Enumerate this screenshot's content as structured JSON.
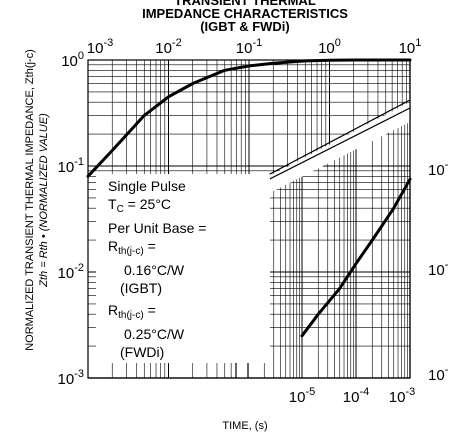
{
  "chart_data": {
    "type": "line",
    "title": [
      "TRANSIENT THERMAL",
      "IMPEDANCE CHARACTERISTICS",
      "(IGBT & FWDi)"
    ],
    "xlabel": "TIME, (s)",
    "ylabel": "NORMALIZED TRANSIENT THERMAL IMPEDANCE, Zth(j-c)",
    "ylabel2": "Zth = Rth • (NORMALIZED VALUE)",
    "left_panel": {
      "x_scale": "log",
      "y_scale": "log",
      "xlim": [
        0.001,
        10
      ],
      "ylim": [
        0.001,
        1
      ],
      "x_ticks": [
        "10-3",
        "10-2",
        "10-1",
        "100",
        "101"
      ],
      "y_ticks": [
        "100",
        "10-1",
        "10-2",
        "10-3"
      ],
      "x": [
        0.001,
        0.002,
        0.005,
        0.01,
        0.02,
        0.05,
        0.1,
        0.2,
        0.5,
        1,
        2,
        5,
        10
      ],
      "y": [
        0.08,
        0.14,
        0.3,
        0.45,
        0.6,
        0.8,
        0.88,
        0.93,
        0.98,
        0.995,
        1,
        1,
        1
      ]
    },
    "right_panel": {
      "x_scale": "log",
      "y_scale": "log",
      "xlim": [
        1e-06,
        0.001
      ],
      "ylim": [
        0.001,
        1
      ],
      "x_ticks": [
        "10-5",
        "10-4",
        "10-3"
      ],
      "y_ticks": [
        "10-",
        "10-",
        "10-"
      ],
      "x": [
        1e-05,
        2e-05,
        5e-05,
        0.0001,
        0.0002,
        0.0005,
        0.001
      ],
      "y": [
        0.0025,
        0.004,
        0.007,
        0.012,
        0.02,
        0.04,
        0.075
      ]
    },
    "grid": true
  },
  "annotation": {
    "line1": "Single Pulse",
    "tc_label": "T",
    "tc_sub": "C",
    "tc_value": " = 25°C",
    "line3": "Per Unit Base =",
    "rth_label": "R",
    "rth_sub": "th(j-c)",
    "rth_eq": " =",
    "igbt_value": "0.16°C/W",
    "igbt_label": "(IGBT)",
    "fwdi_value": "0.25°C/W",
    "fwdi_label": "(FWDi)"
  }
}
